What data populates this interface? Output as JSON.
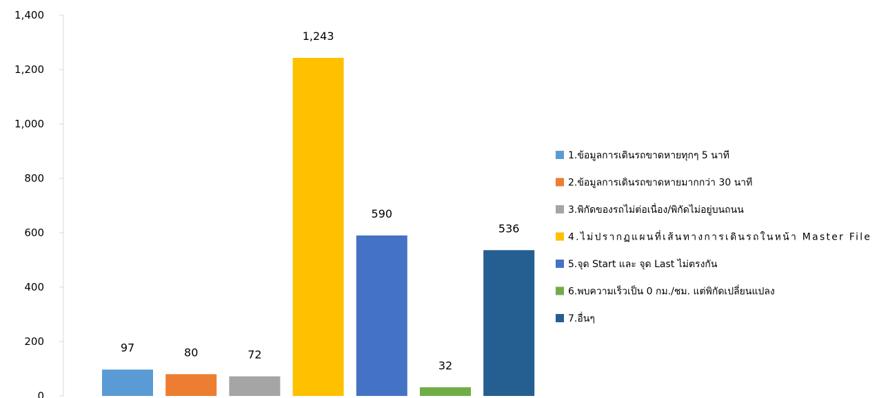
{
  "chart_data": {
    "type": "bar",
    "title": "",
    "xlabel": "",
    "ylabel": "",
    "ylim": [
      0,
      1400
    ],
    "yticks": [
      "0",
      "200",
      "400",
      "600",
      "800",
      "1,000",
      "1,200",
      "1,400"
    ],
    "grid": false,
    "legend_position": "right",
    "categories": [
      "1.ข้อมูลการเดินรถขาดหายทุกๆ 5 นาที",
      "2.ข้อมูลการเดินรถขาดหายมากกว่า 30 นาที",
      "3.พิกัดของรถไม่ต่อเนื่อง/พิกัดไม่อยู่บนถนน",
      "4.ไม่ปรากฏแผนที่เส้นทางการเดินรถในหน้า Master File",
      "5.จุด Start และ จุด Last ไม่ตรงกัน",
      "6.พบความเร็วเป็น 0 กม./ชม. แต่พิกัดเปลี่ยนแปลง",
      "7.อื่นๆ"
    ],
    "values": [
      97,
      80,
      72,
      1243,
      590,
      32,
      536
    ],
    "value_labels": [
      "97",
      "80",
      "72",
      "1,243",
      "590",
      "32",
      "536"
    ],
    "colors": [
      "#5B9BD5",
      "#ED7D31",
      "#A5A5A5",
      "#FFC000",
      "#4472C4",
      "#70AD47",
      "#255E91"
    ]
  }
}
